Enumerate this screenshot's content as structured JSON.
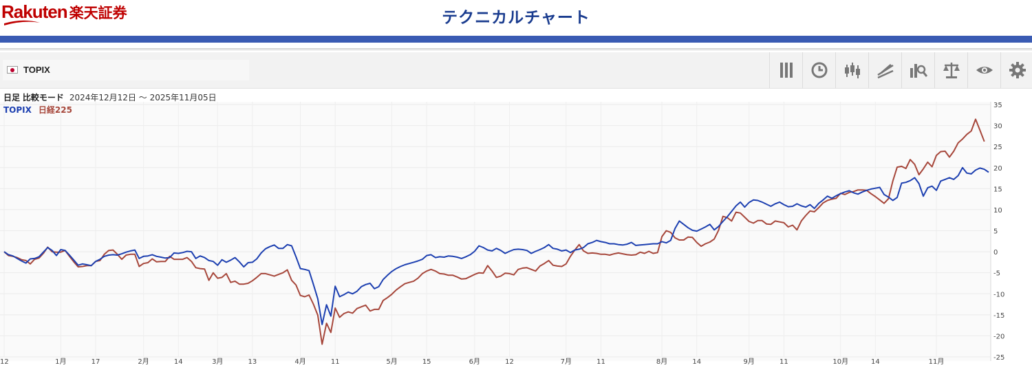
{
  "header": {
    "logo_text": "Rakuten",
    "logo_jp": "楽天証券",
    "page_title": "テクニカルチャート"
  },
  "toolbar": {
    "symbol": "TOPIX",
    "flag_icon": "japan-flag-icon",
    "tools": [
      "indicators-icon",
      "clock-icon",
      "candlestick-icon",
      "drawing-icon",
      "analysis-search-icon",
      "compare-scale-icon",
      "visibility-eye-icon",
      "settings-gear-icon"
    ]
  },
  "info": {
    "period": "日足",
    "mode": "比較モード",
    "range": "2024年12月12日 ～ 2025年11月05日"
  },
  "colors": {
    "topix": "#1c3fb0",
    "nikkei": "#a6463a",
    "header_bar": "#3a5bb3",
    "title": "#1a3c8f",
    "logo": "#bf0000"
  },
  "chart_data": {
    "type": "line",
    "y_unit": "percent change",
    "ylim": [
      -25,
      35
    ],
    "y_ticks": [
      35,
      30,
      25,
      20,
      15,
      10,
      5,
      0,
      -5,
      -10,
      -15,
      -20,
      -25
    ],
    "grid": true,
    "legend": "top-left",
    "x_ticks": [
      {
        "i": 0,
        "label": "12"
      },
      {
        "i": 13,
        "label": "1月"
      },
      {
        "i": 21,
        "label": "17"
      },
      {
        "i": 32,
        "label": "2月"
      },
      {
        "i": 40,
        "label": "14"
      },
      {
        "i": 49,
        "label": "3月"
      },
      {
        "i": 57,
        "label": "13"
      },
      {
        "i": 68,
        "label": "4月"
      },
      {
        "i": 76,
        "label": "11"
      },
      {
        "i": 89,
        "label": "5月"
      },
      {
        "i": 97,
        "label": "15"
      },
      {
        "i": 108,
        "label": "6月"
      },
      {
        "i": 116,
        "label": "12"
      },
      {
        "i": 129,
        "label": "7月"
      },
      {
        "i": 137,
        "label": "11"
      },
      {
        "i": 151,
        "label": "8月"
      },
      {
        "i": 159,
        "label": "14"
      },
      {
        "i": 171,
        "label": "9月"
      },
      {
        "i": 179,
        "label": "11"
      },
      {
        "i": 192,
        "label": "10月"
      },
      {
        "i": 200,
        "label": "14"
      },
      {
        "i": 214,
        "label": "11月"
      }
    ],
    "series": [
      {
        "name": "TOPIX",
        "values": [
          0,
          -0.7,
          -1,
          -1.6,
          -2.2,
          -2.7,
          -1.7,
          -1.6,
          -1.2,
          -0.1,
          1,
          0.3,
          -0.9,
          0.5,
          0.3,
          -0.8,
          -2,
          -3.2,
          -2.9,
          -3.1,
          -3.3,
          -2.3,
          -1.8,
          -1.1,
          -0.8,
          -0.7,
          -0.8,
          -0.5,
          -0.1,
          0.2,
          0.4,
          -1.6,
          -1.1,
          -1,
          -0.7,
          -1.1,
          -1.3,
          -1.5,
          -1.4,
          -0.3,
          -0.4,
          -0.2,
          0.1,
          0,
          -1.6,
          -1,
          -1.4,
          -2.1,
          -2.3,
          -3.2,
          -1.9,
          -2.5,
          -2,
          -1.4,
          -2.4,
          -3.6,
          -2.6,
          -2.5,
          -1.7,
          -0.3,
          0.7,
          1.2,
          1.6,
          0.8,
          0.8,
          1.7,
          1.4,
          -1.2,
          -4,
          -4.2,
          -4.5,
          -7.8,
          -11.2,
          -17.3,
          -12.6,
          -15.3,
          -8.2,
          -10.7,
          -10.2,
          -9.6,
          -10,
          -9.4,
          -8.3,
          -7.8,
          -7.5,
          -8.8,
          -8.3,
          -6.6,
          -5.6,
          -4.7,
          -4,
          -3.5,
          -3.1,
          -2.8,
          -2.5,
          -2.2,
          -1.8,
          -0.9,
          -0.7,
          -1.4,
          -1.2,
          -1.3,
          -1,
          -1.1,
          -1.3,
          -1.6,
          -1.2,
          -0.7,
          0.1,
          1.4,
          1,
          0.4,
          0.2,
          0.8,
          0.3,
          -0.4,
          0.1,
          0.5,
          0.6,
          0.5,
          0.3,
          -0.4,
          0.1,
          0.5,
          1,
          1.7,
          0.8,
          0.6,
          0.2,
          0.4,
          -0.2,
          0.4,
          0.6,
          1,
          1.9,
          2.2,
          2.7,
          2.4,
          2.2,
          1.9,
          1.9,
          1.7,
          1.6,
          1.8,
          2.2,
          1.5,
          1.6,
          1.7,
          1.8,
          1.9,
          1.9,
          2.4,
          2.1,
          2.7,
          5.5,
          7.3,
          6.5,
          5.7,
          5.1,
          4.9,
          5.4,
          5.9,
          6.5,
          5.2,
          6,
          7.2,
          8.3,
          9.6,
          10.9,
          11.8,
          10.6,
          11.7,
          12.3,
          12.2,
          11.8,
          11.3,
          10.8,
          11.4,
          11.8,
          11.2,
          10.7,
          10.8,
          11.4,
          10.9,
          10.6,
          11.2,
          10.3,
          11.5,
          12.3,
          13.2,
          12.7,
          13.3,
          13.8,
          14.2,
          14.5,
          14,
          13.7,
          14.2,
          14.6,
          14.9,
          15.1,
          15.3,
          13.6,
          13,
          12.2,
          12.9,
          16.3,
          16.5,
          16.9,
          17.6,
          16.2,
          13.2,
          15.2,
          15.6,
          14.6,
          16.8,
          17.2,
          17.6,
          17.2,
          18.1,
          20,
          18.7,
          18.5,
          19.4,
          19.9,
          19.6,
          18.9
        ]
      },
      {
        "name": "日経225",
        "values": [
          0,
          -0.9,
          -1.1,
          -1.4,
          -1.9,
          -2.1,
          -2.9,
          -1.8,
          -1.5,
          -0.4,
          1.1,
          0,
          -0.1,
          -0.1,
          0.3,
          -1.1,
          -2.4,
          -3.6,
          -3.5,
          -3.3,
          -3.3,
          -2.3,
          -2.1,
          -0.6,
          0.3,
          0.4,
          -0.6,
          -1.8,
          -0.8,
          -0.6,
          -0.6,
          -3.5,
          -2.8,
          -2.6,
          -1.7,
          -2.4,
          -2.3,
          -2.3,
          -1.1,
          -1.8,
          -1.8,
          -1.8,
          -1.4,
          -2.3,
          -3.8,
          -4,
          -4.1,
          -6.8,
          -5,
          -6.3,
          -6.1,
          -5.2,
          -7.3,
          -7,
          -7.7,
          -7.7,
          -7.5,
          -6.9,
          -6.1,
          -5.2,
          -5.2,
          -5.5,
          -5.8,
          -5.4,
          -5,
          -4.3,
          -6.8,
          -7.9,
          -10.4,
          -10.7,
          -10.3,
          -12.5,
          -15.1,
          -22,
          -17,
          -19.2,
          -13.4,
          -15.6,
          -14.7,
          -14.3,
          -14.6,
          -13.5,
          -13.1,
          -12.7,
          -14.1,
          -13.7,
          -13.7,
          -11.6,
          -10.9,
          -10.1,
          -9.1,
          -8.3,
          -7.6,
          -7.3,
          -7,
          -6.3,
          -5.2,
          -4.6,
          -4.2,
          -4.6,
          -5.2,
          -5.3,
          -5.6,
          -5.6,
          -6,
          -6.5,
          -6.4,
          -5.9,
          -5.4,
          -5,
          -5.1,
          -3.3,
          -4.6,
          -6.1,
          -5.8,
          -5.1,
          -5.2,
          -5.5,
          -4.2,
          -3.9,
          -3.8,
          -4.2,
          -4.6,
          -3.4,
          -2.8,
          -2.1,
          -3.2,
          -3.4,
          -3.5,
          -2.9,
          -1.1,
          0.4,
          1.7,
          0.2,
          -0.4,
          -0.3,
          -0.4,
          -0.6,
          -0.6,
          -0.8,
          -0.5,
          -0.3,
          -0.5,
          -0.7,
          -0.8,
          -0.7,
          -0.1,
          -0.4,
          0.1,
          -0.4,
          -0.2,
          3.6,
          5,
          4.6,
          3.3,
          2.8,
          2.8,
          3.5,
          3.4,
          2.2,
          1.3,
          1.9,
          2.3,
          3,
          5.1,
          8.4,
          8.1,
          7.3,
          9.4,
          9.2,
          8.2,
          7.2,
          6.8,
          7.4,
          7.4,
          6.6,
          6.5,
          7.3,
          7.1,
          6.9,
          5.9,
          6.3,
          5.2,
          7.3,
          8.6,
          9.7,
          9.5,
          10.5,
          11.6,
          12.2,
          12.5,
          12.7,
          13.9,
          13.6,
          14.1,
          14.3,
          14.7,
          14.7,
          14.6,
          13.8,
          13.1,
          12.3,
          11.5,
          12.6,
          16.8,
          20.1,
          20.3,
          19.8,
          21.9,
          20.8,
          18.3,
          19.7,
          21.3,
          20.2,
          22.9,
          23.8,
          23.9,
          22.5,
          23.9,
          25.9,
          26.8,
          27.9,
          28.7,
          31.5,
          28.9,
          26.2
        ]
      }
    ]
  }
}
